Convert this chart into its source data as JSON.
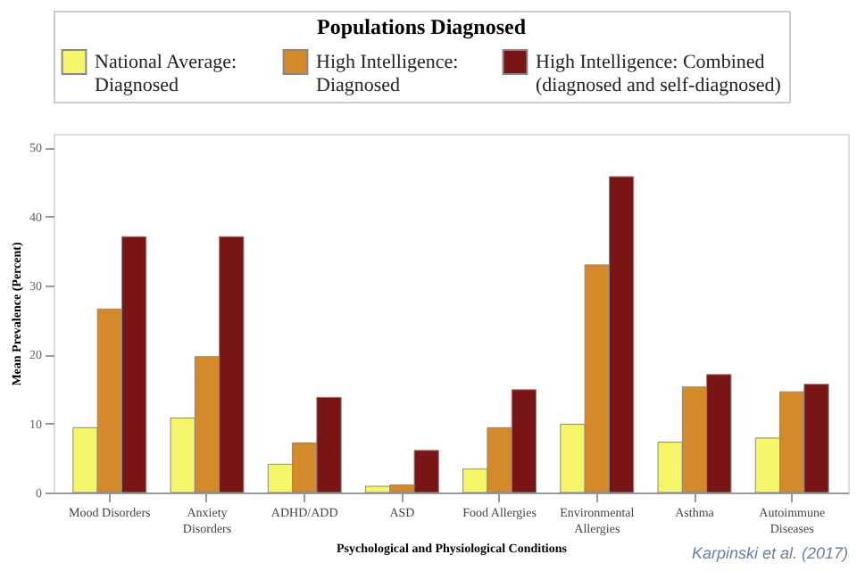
{
  "chart_data": {
    "type": "bar",
    "legend_title": "Populations Diagnosed",
    "categories": [
      "Mood Disorders",
      "Anxiety Disorders",
      "ADHD/ADD",
      "ASD",
      "Food Allergies",
      "Environmental Allergies",
      "Asthma",
      "Autoimmune Diseases"
    ],
    "series": [
      {
        "name": "National Average: Diagnosed",
        "color": "#f5f56a",
        "values": [
          9.4,
          10.8,
          4.1,
          0.9,
          3.4,
          9.9,
          7.3,
          7.9
        ]
      },
      {
        "name": "High Intelligence: Diagnosed",
        "color": "#d4892a",
        "values": [
          26.6,
          19.7,
          7.2,
          1.1,
          9.4,
          33.0,
          15.3,
          14.6
        ]
      },
      {
        "name": "High Intelligence: Combined (diagnosed and self-diagnosed)",
        "color": "#7a1515",
        "values": [
          37.1,
          37.1,
          13.8,
          6.1,
          14.9,
          45.8,
          17.1,
          15.7
        ]
      }
    ],
    "xlabel": "Psychological and Physiological Conditions",
    "ylabel": "Mean Prevalence (Percent)",
    "ylim": [
      0,
      52
    ],
    "yticks": [
      0,
      10,
      20,
      30,
      40,
      50
    ],
    "grid": false,
    "legend": "top",
    "annotations": [
      "Karpinski et al. (2017)"
    ]
  }
}
